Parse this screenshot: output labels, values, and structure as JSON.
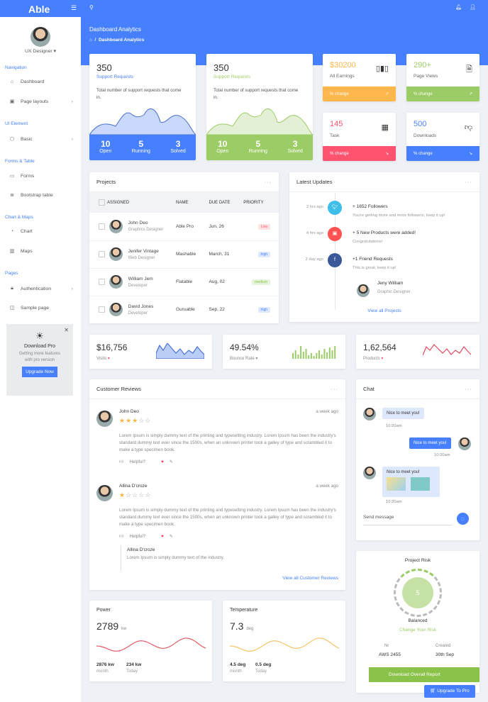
{
  "app": {
    "logo": "Able"
  },
  "user": {
    "role": "UX Designer ▾"
  },
  "page": {
    "title": "Dashboard Analytics",
    "breadcrumb": "Dashboard Analytics"
  },
  "sidebar": {
    "sections": [
      "Navigation",
      "UI Element",
      "Forms & Table",
      "Chart & Maps",
      "Pages"
    ],
    "items": [
      {
        "label": "Dashboard",
        "icon": "home-icon"
      },
      {
        "label": "Page layouts",
        "icon": "layout-icon"
      },
      {
        "label": "Basic",
        "icon": "box-icon"
      },
      {
        "label": "Forms",
        "icon": "form-icon"
      },
      {
        "label": "Bootstrap table",
        "icon": "table-icon"
      },
      {
        "label": "Chart",
        "icon": "pie-chart-icon"
      },
      {
        "label": "Maps",
        "icon": "map-icon"
      },
      {
        "label": "Authentication",
        "icon": "lock-icon"
      },
      {
        "label": "Sample page",
        "icon": "sidebar-icon"
      }
    ],
    "promo": {
      "title": "Download Pro",
      "text": "Getting more features with pro version",
      "button": "Upgrade Now"
    }
  },
  "support_cards": [
    {
      "value": "350",
      "label": "Support Requests",
      "desc": "Total number of support requests that come in.",
      "stats": [
        {
          "v": "10",
          "l": "Open"
        },
        {
          "v": "5",
          "l": "Running"
        },
        {
          "v": "3",
          "l": "Solved"
        }
      ],
      "color": "#4680ff"
    },
    {
      "value": "350",
      "label": "Support Requests",
      "desc": "Total number of support requests that come in.",
      "stats": [
        {
          "v": "10",
          "l": "Open"
        },
        {
          "v": "5",
          "l": "Running"
        },
        {
          "v": "3",
          "l": "Solved"
        }
      ],
      "color": "#9ccc65"
    }
  ],
  "mini_cards": [
    {
      "value": "$30200",
      "label": "All Earnings",
      "change": "% change",
      "color": "#ffb64d",
      "icon": "bar-chart-icon",
      "trend": "up"
    },
    {
      "value": "290+",
      "label": "Page Views",
      "change": "% change",
      "color": "#9ccc65",
      "icon": "file-text-icon",
      "trend": "up"
    },
    {
      "value": "145",
      "label": "Task",
      "change": "% change",
      "color": "#ff5370",
      "icon": "calendar-icon",
      "trend": "down"
    },
    {
      "value": "500",
      "label": "Downloads",
      "change": "% change",
      "color": "#4680ff",
      "icon": "thumbs-down-icon",
      "trend": "down"
    }
  ],
  "projects": {
    "title": "Projects",
    "columns": [
      "ASSIGNED",
      "NAME",
      "DUE DATE",
      "PRIORITY"
    ],
    "rows": [
      {
        "name": "John Deo",
        "role": "Graphics Designer",
        "project": "Able Pro",
        "due": "Jun, 26",
        "priority": "Low"
      },
      {
        "name": "Jenifer Vintage",
        "role": "Web Designer",
        "project": "Mashable",
        "due": "March, 31",
        "priority": "high"
      },
      {
        "name": "William Jem",
        "role": "Developer",
        "project": "Flatable",
        "due": "Aug, 02",
        "priority": "medium"
      },
      {
        "name": "David Jones",
        "role": "Developer",
        "project": "Guruable",
        "due": "Sep, 22",
        "priority": "high"
      }
    ]
  },
  "updates": {
    "title": "Latest Updates",
    "items": [
      {
        "time": "2 hrs ago",
        "title": "+ 1652 Followers",
        "text": "You're getting more and more followers, keep it up!",
        "color": "#3ebfea",
        "icon": "twitter-icon"
      },
      {
        "time": "4 hrs ago",
        "title": "+ 5 New Products were added!",
        "text": "Congratulations!",
        "color": "#ff5252",
        "icon": "briefcase-icon"
      },
      {
        "time": "2 day ago",
        "title": "+1 Friend Requests",
        "text": "This is great, keep it up!",
        "color": "#3b5998",
        "icon": "facebook-icon"
      }
    ],
    "person": {
      "name": "Jeny William",
      "role": "Graphic Designer"
    },
    "link": "View all Projects"
  },
  "stats": [
    {
      "value": "$16,756",
      "label": "Visits"
    },
    {
      "value": "49.54%",
      "label": "Bounce Rate"
    },
    {
      "value": "1,62,564",
      "label": "Products"
    }
  ],
  "reviews": {
    "title": "Customer Reviews",
    "items": [
      {
        "name": "John Deo",
        "time": "a week ago",
        "rating": 3,
        "text": "Lorem Ipsum is simply dummy text of the printing and typesetting industry. Lorem Ipsum has been the industry's standard dummy text ever since the 1500s, when an unknown printer took a galley of type and scrambled it to make a type specimen book.",
        "helpful": "Helpful?"
      },
      {
        "name": "Allina D'croze",
        "time": "a week ago",
        "rating": 1,
        "text": "Lorem Ipsum is simply dummy text of the printing and typesetting industry. Lorem Ipsum has been the industry's standard dummy text ever since the 1500s, when an unknown printer took a galley of type and scrambled it to make a type specimen book.",
        "helpful": "Helpful?"
      }
    ],
    "reply": {
      "name": "Allina D'croze",
      "text": "Lorem Ipsum is simply dummy text of the industry."
    },
    "link": "View all Customer Reviews"
  },
  "chat": {
    "title": "Chat",
    "messages": [
      {
        "text": "Nice to meet you!",
        "time": "10:20am"
      },
      {
        "text": "Nice to meet you!",
        "time": "10:20am"
      },
      {
        "text": "Nice to meet you!",
        "time": "10:20am"
      }
    ],
    "placeholder": "Send message"
  },
  "risk": {
    "title": "Project Risk",
    "value": "5",
    "status": "Balanced",
    "link": "Change Your Risk",
    "nr_label": "Nr",
    "nr": "AWS 2455",
    "created_label": "Created",
    "created": "30th Sep",
    "button": "Download Overall Report",
    "upgrade": "Upgrade To Pro"
  },
  "power": {
    "title": "Power",
    "value": "2789",
    "unit": "kw",
    "a": "2876 kw",
    "a_l": "month",
    "b": "234 kw",
    "b_l": "Today"
  },
  "temperature": {
    "title": "Temperature",
    "value": "7.3",
    "unit": "deg",
    "a": "4.5 deg",
    "a_l": "month",
    "b": "0.5 deg",
    "b_l": "Today"
  }
}
